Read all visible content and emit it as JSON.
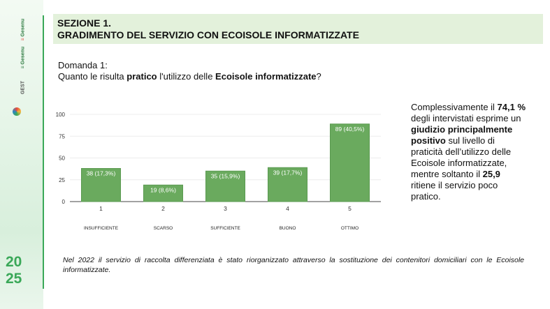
{
  "logos": [
    "Gruppo Gesenu",
    "Gesenu",
    "GEST"
  ],
  "year": [
    "20",
    "25"
  ],
  "header": {
    "line1": "SEZIONE 1.",
    "line2": "GRADIMENTO DEL SERVIZIO CON ECOISOLE INFORMATIZZATE"
  },
  "question": {
    "label": "Domanda 1:",
    "pre": "Quanto le risulta ",
    "b1": "pratico",
    "mid": " l'utilizzo delle ",
    "b2": "Ecoisole informatizzate",
    "post": "?"
  },
  "summary": {
    "t1": "Complessivamente il ",
    "b1": "74,1 %",
    "t2": " degli intervistati esprime un ",
    "b2": "giudizio principalmente positivo",
    "t3": " sul livello di praticità dell’utilizzo delle Ecoisole informatizzate, mentre soltanto il ",
    "b3": "25,9",
    "t4": " ritiene il servizio poco pratico."
  },
  "note": "Nel 2022 il servizio di raccolta differenziata è stato riorganizzato attraverso la sostituzione dei contenitori domiciliari con le Ecoisole informatizzate.",
  "chart_data": {
    "type": "bar",
    "categories": [
      "1",
      "2",
      "3",
      "4",
      "5"
    ],
    "category_labels": [
      "INSUFFICIENTE",
      "SCARSO",
      "SUFFICIENTE",
      "BUONO",
      "OTTIMO"
    ],
    "values": [
      38,
      19,
      35,
      39,
      89
    ],
    "data_labels": [
      "38 (17,3%)",
      "19 (8,6%)",
      "35 (15,9%)",
      "39 (17,7%)",
      "89 (40,5%)"
    ],
    "yticks": [
      0,
      25,
      50,
      75,
      100
    ],
    "ylim": [
      0,
      100
    ],
    "grid": true,
    "bar_color": "#6aaa5e"
  }
}
